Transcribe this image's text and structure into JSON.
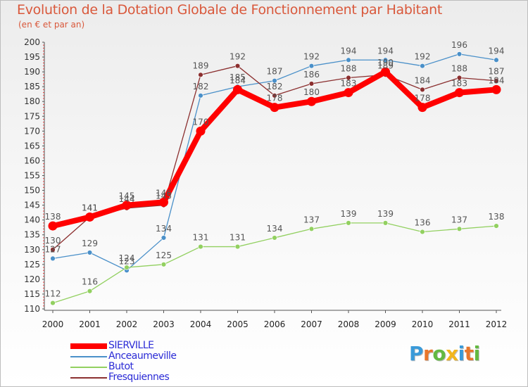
{
  "header": {
    "title": "Evolution de la Dotation Globale de Fonctionnement par Habitant",
    "subtitle": "(en € et par an)"
  },
  "logo": {
    "letters": [
      "P",
      "r",
      "o",
      "x",
      "i",
      "t",
      "i"
    ],
    "colors": [
      "#3a9ad9",
      "#e8762b",
      "#63b941",
      "#f2b61d",
      "#3a9ad9",
      "#e8762b",
      "#63b941"
    ]
  },
  "chart_data": {
    "type": "line",
    "title": "Evolution de la Dotation Globale de Fonctionnement par Habitant",
    "subtitle": "(en € et par an)",
    "xlabel": "",
    "ylabel": "",
    "x": [
      2000,
      2001,
      2002,
      2003,
      2004,
      2005,
      2006,
      2007,
      2008,
      2009,
      2010,
      2011,
      2012
    ],
    "ylim": [
      110,
      200
    ],
    "yticks": [
      110,
      115,
      120,
      125,
      130,
      135,
      140,
      145,
      150,
      155,
      160,
      165,
      170,
      175,
      180,
      185,
      190,
      195,
      200
    ],
    "grid": false,
    "legend_position": "bottom-left",
    "series": [
      {
        "name": "Anceaumeville",
        "color": "#4a90c9",
        "values": [
          127,
          129,
          123,
          134,
          182,
          185,
          187,
          192,
          194,
          194,
          192,
          196,
          194
        ]
      },
      {
        "name": "Butot",
        "color": "#92d060",
        "values": [
          112,
          116,
          124,
          125,
          131,
          131,
          134,
          137,
          139,
          139,
          136,
          137,
          138
        ]
      },
      {
        "name": "Fresquiennes",
        "color": "#8b2f2f",
        "values": [
          130,
          141,
          144,
          145,
          189,
          192,
          182,
          186,
          188,
          189,
          184,
          188,
          187
        ]
      },
      {
        "name": "SIERVILLE",
        "color": "#ff0000",
        "values": [
          138,
          141,
          145,
          146,
          170,
          184,
          178,
          180,
          183,
          190,
          178,
          183,
          184
        ]
      }
    ],
    "legend": [
      {
        "name": "SIERVILLE",
        "color": "#ff0000",
        "text_color": "#2b2bd6"
      },
      {
        "name": "Anceaumeville",
        "color": "#4a90c9",
        "text_color": "#2b2bd6"
      },
      {
        "name": "Butot",
        "color": "#92d060",
        "text_color": "#2b2bd6"
      },
      {
        "name": "Fresquiennes",
        "color": "#8b2f2f",
        "text_color": "#2b2bd6"
      }
    ]
  }
}
